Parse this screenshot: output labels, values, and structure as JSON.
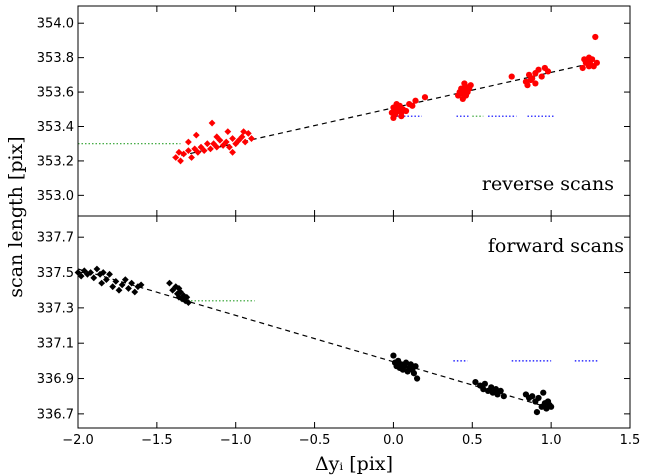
{
  "chart_data": {
    "type": "scatter",
    "xlabel": "Δyᵢ [pix]",
    "ylabel": "scan length [pix]",
    "xlim": [
      -2.0,
      1.5
    ],
    "xticks": [
      -2.0,
      -1.5,
      -1.0,
      -0.5,
      0.0,
      0.5,
      1.0,
      1.5
    ],
    "xtick_labels": [
      "−2.0",
      "−1.5",
      "−1.0",
      "−0.5",
      "0.0",
      "0.5",
      "1.0",
      "1.5"
    ],
    "grid": false,
    "panels": [
      {
        "annotation": "reverse scans",
        "ylim": [
          352.88,
          354.1
        ],
        "yticks": [
          353.0,
          353.2,
          353.4,
          353.6,
          353.8,
          354.0
        ],
        "ytick_labels": [
          "353.0",
          "353.2",
          "353.4",
          "353.6",
          "353.8",
          "354.0"
        ],
        "color": "#ff0000",
        "fit_line": {
          "x": [
            -1.4,
            1.27
          ],
          "y": [
            353.22,
            353.77
          ]
        },
        "ref_segments": [
          {
            "color": "#2ca02c",
            "x": [
              -2.0,
              -1.35
            ],
            "y": 353.3
          },
          {
            "color": "#0000ff",
            "x": [
              0.0,
              0.18
            ],
            "y": 353.46
          },
          {
            "color": "#0000ff",
            "x": [
              0.4,
              0.48
            ],
            "y": 353.46
          },
          {
            "color": "#2ca02c",
            "x": [
              0.5,
              0.57
            ],
            "y": 353.46
          },
          {
            "color": "#0000ff",
            "x": [
              0.6,
              0.78
            ],
            "y": 353.46
          },
          {
            "color": "#0000ff",
            "x": [
              0.85,
              1.02
            ],
            "y": 353.46
          }
        ],
        "series": [
          {
            "marker": "diamond",
            "points": [
              [
                -1.38,
                353.22
              ],
              [
                -1.36,
                353.25
              ],
              [
                -1.35,
                353.2
              ],
              [
                -1.33,
                353.24
              ],
              [
                -1.3,
                353.26
              ],
              [
                -1.28,
                353.22
              ],
              [
                -1.26,
                353.27
              ],
              [
                -1.24,
                353.25
              ],
              [
                -1.22,
                353.28
              ],
              [
                -1.2,
                353.26
              ],
              [
                -1.18,
                353.3
              ],
              [
                -1.16,
                353.27
              ],
              [
                -1.14,
                353.3
              ],
              [
                -1.12,
                353.28
              ],
              [
                -1.1,
                353.32
              ],
              [
                -1.08,
                353.29
              ],
              [
                -1.06,
                353.31
              ],
              [
                -1.04,
                353.28
              ],
              [
                -1.02,
                353.33
              ],
              [
                -1.0,
                353.3
              ],
              [
                -0.98,
                353.32
              ],
              [
                -0.96,
                353.34
              ],
              [
                -0.94,
                353.31
              ],
              [
                -0.92,
                353.36
              ],
              [
                -0.9,
                353.33
              ],
              [
                -1.15,
                353.42
              ],
              [
                -1.05,
                353.37
              ],
              [
                -1.25,
                353.35
              ],
              [
                -0.95,
                353.37
              ],
              [
                -1.12,
                353.34
              ],
              [
                -1.02,
                353.25
              ],
              [
                -1.3,
                353.31
              ]
            ]
          },
          {
            "marker": "circle",
            "points": [
              [
                -0.01,
                353.48
              ],
              [
                0.0,
                353.51
              ],
              [
                0.01,
                353.47
              ],
              [
                0.02,
                353.5
              ],
              [
                0.03,
                353.49
              ],
              [
                0.04,
                353.52
              ],
              [
                0.05,
                353.48
              ],
              [
                0.06,
                353.5
              ],
              [
                0.08,
                353.49
              ],
              [
                0.1,
                353.53
              ],
              [
                0.12,
                353.52
              ],
              [
                0.14,
                353.55
              ],
              [
                0.2,
                353.57
              ],
              [
                0.0,
                353.45
              ],
              [
                0.02,
                353.53
              ],
              [
                0.05,
                353.46
              ],
              [
                0.41,
                353.58
              ],
              [
                0.42,
                353.6
              ],
              [
                0.43,
                353.62
              ],
              [
                0.44,
                353.59
              ],
              [
                0.45,
                353.61
              ],
              [
                0.46,
                353.63
              ],
              [
                0.47,
                353.6
              ],
              [
                0.48,
                353.62
              ],
              [
                0.44,
                353.56
              ],
              [
                0.45,
                353.65
              ],
              [
                0.46,
                353.58
              ],
              [
                0.49,
                353.64
              ],
              [
                0.75,
                353.69
              ],
              [
                0.84,
                353.66
              ],
              [
                0.86,
                353.7
              ],
              [
                0.88,
                353.68
              ],
              [
                0.9,
                353.71
              ],
              [
                0.92,
                353.73
              ],
              [
                0.94,
                353.69
              ],
              [
                0.96,
                353.74
              ],
              [
                0.98,
                353.72
              ],
              [
                0.85,
                353.64
              ],
              [
                0.87,
                353.67
              ],
              [
                0.9,
                353.65
              ],
              [
                1.2,
                353.74
              ],
              [
                1.22,
                353.77
              ],
              [
                1.23,
                353.78
              ],
              [
                1.24,
                353.8
              ],
              [
                1.25,
                353.76
              ],
              [
                1.26,
                353.79
              ],
              [
                1.27,
                353.75
              ],
              [
                1.28,
                353.92
              ],
              [
                1.29,
                353.77
              ],
              [
                1.21,
                353.79
              ],
              [
                1.24,
                353.75
              ]
            ]
          }
        ]
      },
      {
        "annotation": "forward scans",
        "ylim": [
          336.62,
          337.82
        ],
        "yticks": [
          336.7,
          336.9,
          337.1,
          337.3,
          337.5,
          337.7
        ],
        "ytick_labels": [
          "336.7",
          "336.9",
          "337.1",
          "337.3",
          "337.5",
          "337.7"
        ],
        "color": "#000000",
        "fit_line": {
          "x": [
            -2.0,
            0.97
          ],
          "y": [
            337.52,
            336.74
          ]
        },
        "ref_segments": [
          {
            "color": "#2ca02c",
            "x": [
              -1.35,
              -0.88
            ],
            "y": 337.34
          },
          {
            "color": "#0000ff",
            "x": [
              0.38,
              0.47
            ],
            "y": 337.0
          },
          {
            "color": "#0000ff",
            "x": [
              0.75,
              1.0
            ],
            "y": 337.0
          },
          {
            "color": "#0000ff",
            "x": [
              1.15,
              1.3
            ],
            "y": 337.0
          }
        ],
        "series": [
          {
            "marker": "diamond",
            "points": [
              [
                -2.0,
                337.5
              ],
              [
                -1.98,
                337.48
              ],
              [
                -1.96,
                337.51
              ],
              [
                -1.94,
                337.49
              ],
              [
                -1.92,
                337.5
              ],
              [
                -1.9,
                337.47
              ],
              [
                -1.88,
                337.52
              ],
              [
                -1.86,
                337.49
              ],
              [
                -1.84,
                337.5
              ],
              [
                -1.82,
                337.46
              ],
              [
                -1.8,
                337.49
              ],
              [
                -1.85,
                337.44
              ],
              [
                -1.78,
                337.42
              ],
              [
                -1.76,
                337.45
              ],
              [
                -1.74,
                337.4
              ],
              [
                -1.72,
                337.43
              ],
              [
                -1.7,
                337.46
              ],
              [
                -1.68,
                337.41
              ],
              [
                -1.66,
                337.44
              ],
              [
                -1.64,
                337.39
              ],
              [
                -1.62,
                337.42
              ],
              [
                -1.6,
                337.43
              ],
              [
                -1.42,
                337.44
              ],
              [
                -1.4,
                337.4
              ],
              [
                -1.38,
                337.42
              ],
              [
                -1.37,
                337.38
              ],
              [
                -1.36,
                337.36
              ],
              [
                -1.35,
                337.39
              ],
              [
                -1.34,
                337.35
              ],
              [
                -1.33,
                337.37
              ],
              [
                -1.32,
                337.34
              ],
              [
                -1.31,
                337.36
              ],
              [
                -1.3,
                337.33
              ],
              [
                -1.36,
                337.41
              ]
            ]
          },
          {
            "marker": "circle",
            "points": [
              [
                0.0,
                337.03
              ],
              [
                0.01,
                336.99
              ],
              [
                0.02,
                336.97
              ],
              [
                0.03,
                337.0
              ],
              [
                0.04,
                336.96
              ],
              [
                0.05,
                336.98
              ],
              [
                0.06,
                336.95
              ],
              [
                0.07,
                336.97
              ],
              [
                0.08,
                336.99
              ],
              [
                0.09,
                336.94
              ],
              [
                0.1,
                336.96
              ],
              [
                0.11,
                336.98
              ],
              [
                0.12,
                336.95
              ],
              [
                0.13,
                336.93
              ],
              [
                0.14,
                336.97
              ],
              [
                0.15,
                336.9
              ],
              [
                0.52,
                336.88
              ],
              [
                0.55,
                336.86
              ],
              [
                0.57,
                336.84
              ],
              [
                0.58,
                336.87
              ],
              [
                0.6,
                336.83
              ],
              [
                0.62,
                336.85
              ],
              [
                0.63,
                336.82
              ],
              [
                0.65,
                336.84
              ],
              [
                0.66,
                336.81
              ],
              [
                0.68,
                336.83
              ],
              [
                0.7,
                336.8
              ],
              [
                0.84,
                336.81
              ],
              [
                0.86,
                336.79
              ],
              [
                0.88,
                336.8
              ],
              [
                0.9,
                336.77
              ],
              [
                0.92,
                336.79
              ],
              [
                0.94,
                336.74
              ],
              [
                0.96,
                336.76
              ],
              [
                0.97,
                336.73
              ],
              [
                0.98,
                336.77
              ],
              [
                0.99,
                336.75
              ],
              [
                1.0,
                336.74
              ],
              [
                0.95,
                336.82
              ],
              [
                0.91,
                336.71
              ]
            ]
          }
        ]
      }
    ]
  }
}
